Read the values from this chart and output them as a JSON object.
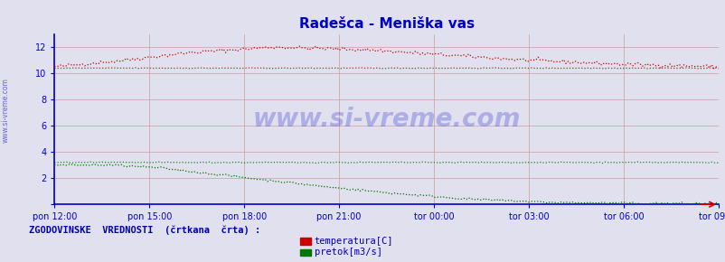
{
  "title": "Radešca - Meniška vas",
  "title_color": "#0000cc",
  "bg_color": "#e0e0ee",
  "plot_bg_color": "#e0e0ee",
  "grid_color": "#cc9999",
  "axis_color": "#0000cc",
  "tick_label_color": "#0000cc",
  "watermark_text": "www.si-vreme.com",
  "watermark_color": "#0000cc",
  "sidebar_text": "www.si-vreme.com",
  "sidebar_color": "#0000cc",
  "ylim": [
    0,
    13
  ],
  "yticks": [
    0,
    2,
    4,
    6,
    8,
    10,
    12
  ],
  "xtick_labels": [
    "pon 12:00",
    "pon 15:00",
    "pon 18:00",
    "pon 21:00",
    "tor 00:00",
    "tor 03:00",
    "tor 06:00",
    "tor 09:00"
  ],
  "n_points": 288,
  "temp_color": "#cc0000",
  "flow_color": "#007700",
  "legend_text_color": "#0000aa",
  "legend_title": "ZGODOVINSKE  VREDNOSTI  (črtkana  črta) :",
  "legend_items": [
    "temperatura[C]",
    "pretok[m3/s]"
  ],
  "legend_colors": [
    "#cc0000",
    "#007700"
  ]
}
